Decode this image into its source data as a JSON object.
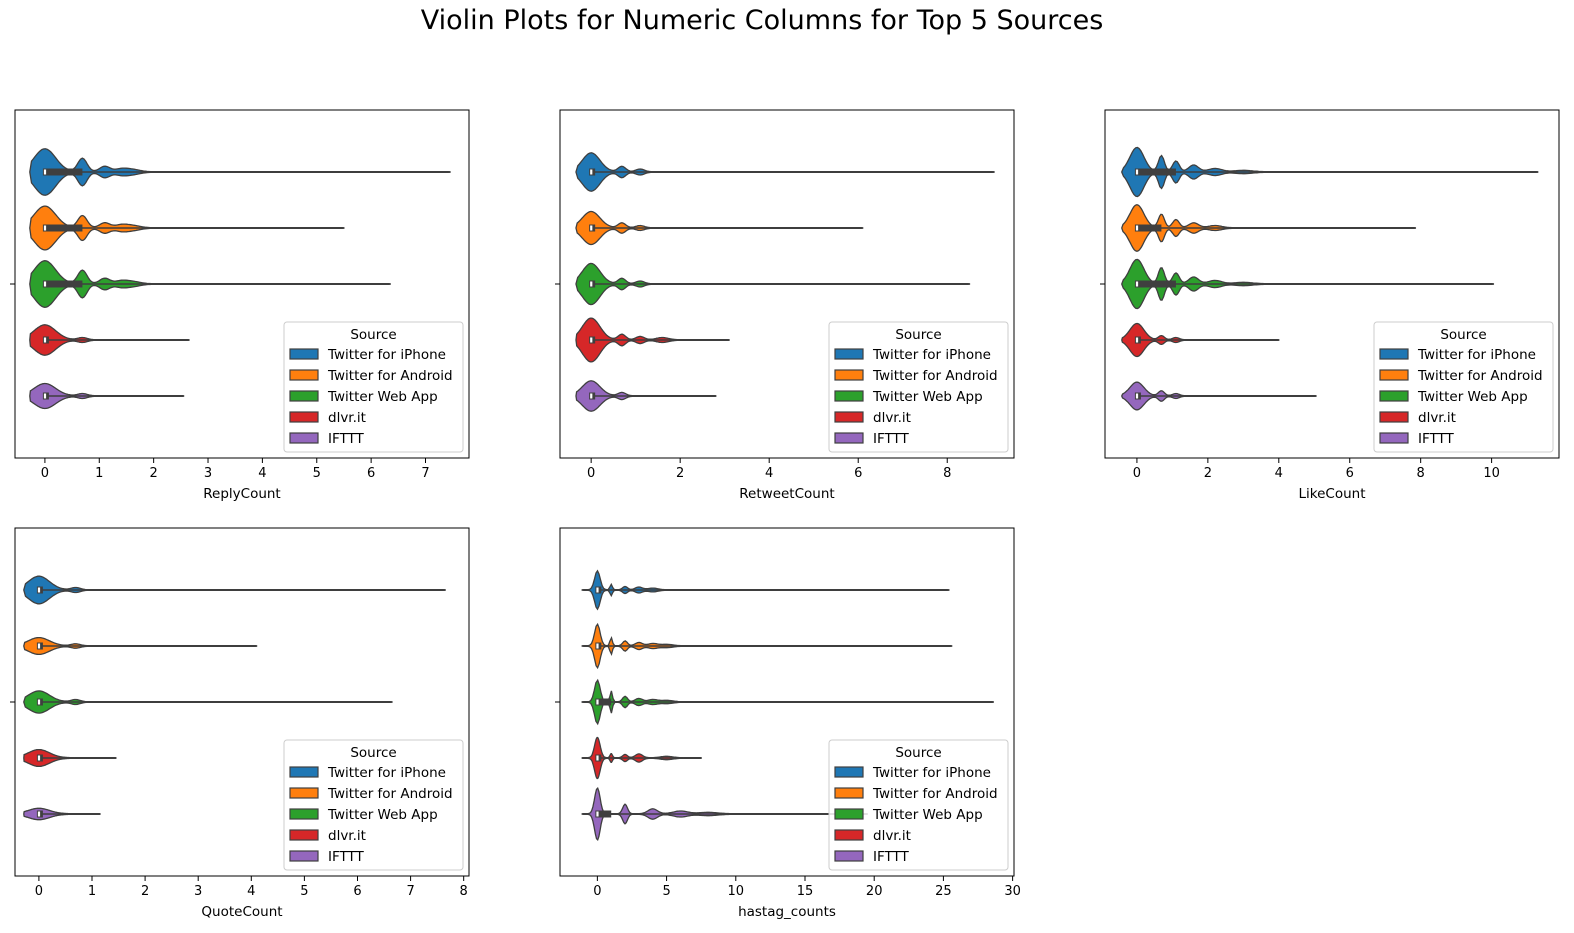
{
  "title": "Violin Plots for Numeric Columns for Top 5 Sources",
  "colors": {
    "Twitter for iPhone": "#1f77b4",
    "Twitter for Android": "#ff7f0e",
    "Twitter Web App": "#2ca02c",
    "dlvr.it": "#d62728",
    "IFTTT": "#9467bd"
  },
  "chart_data": [
    {
      "type": "violin",
      "xlabel": "ReplyCount",
      "xlim": [
        -0.55,
        7.8
      ],
      "xticks": [
        0,
        1,
        2,
        3,
        4,
        5,
        6,
        7
      ],
      "legend_title": "Source",
      "legend_position": "lower-right",
      "series": [
        {
          "name": "Twitter for iPhone",
          "max": 7.45,
          "width": 0.85,
          "iqr": [
            0,
            0.69
          ],
          "bumps": [
            [
              0.69,
              0.5
            ],
            [
              1.1,
              0.2
            ],
            [
              1.4,
              0.1
            ],
            [
              1.61,
              0.08
            ]
          ]
        },
        {
          "name": "Twitter for Android",
          "max": 5.5,
          "width": 0.8,
          "iqr": [
            0,
            0.69
          ],
          "bumps": [
            [
              0.69,
              0.45
            ],
            [
              1.1,
              0.18
            ],
            [
              1.4,
              0.1
            ],
            [
              1.61,
              0.08
            ]
          ]
        },
        {
          "name": "Twitter Web App",
          "max": 6.35,
          "width": 0.85,
          "iqr": [
            0,
            0.69
          ],
          "bumps": [
            [
              0.69,
              0.5
            ],
            [
              1.1,
              0.2
            ],
            [
              1.4,
              0.1
            ],
            [
              1.61,
              0.08
            ]
          ]
        },
        {
          "name": "dlvr.it",
          "max": 2.65,
          "width": 0.55,
          "iqr": [
            0,
            0
          ],
          "bumps": [
            [
              0.69,
              0.08
            ]
          ]
        },
        {
          "name": "IFTTT",
          "max": 2.55,
          "width": 0.45,
          "iqr": [
            0,
            0
          ],
          "bumps": [
            [
              0.69,
              0.08
            ]
          ]
        }
      ]
    },
    {
      "type": "violin",
      "xlabel": "RetweetCount",
      "xlim": [
        -0.7,
        9.5
      ],
      "xticks": [
        0,
        2,
        4,
        6,
        8
      ],
      "legend_title": "Source",
      "legend_position": "lower-right",
      "series": [
        {
          "name": "Twitter for iPhone",
          "max": 9.05,
          "width": 0.7,
          "iqr": [
            0,
            0
          ],
          "bumps": [
            [
              0.69,
              0.2
            ],
            [
              1.1,
              0.1
            ]
          ]
        },
        {
          "name": "Twitter for Android",
          "max": 6.1,
          "width": 0.6,
          "iqr": [
            0,
            0
          ],
          "bumps": [
            [
              0.69,
              0.18
            ],
            [
              1.1,
              0.08
            ]
          ]
        },
        {
          "name": "Twitter Web App",
          "max": 8.5,
          "width": 0.75,
          "iqr": [
            0,
            0
          ],
          "bumps": [
            [
              0.69,
              0.2
            ],
            [
              1.1,
              0.1
            ]
          ]
        },
        {
          "name": "dlvr.it",
          "max": 3.1,
          "width": 0.8,
          "iqr": [
            0,
            0
          ],
          "bumps": [
            [
              0.69,
              0.2
            ],
            [
              1.1,
              0.12
            ],
            [
              1.6,
              0.08
            ]
          ]
        },
        {
          "name": "IFTTT",
          "max": 2.8,
          "width": 0.55,
          "iqr": [
            0,
            0
          ],
          "bumps": [
            [
              0.69,
              0.12
            ]
          ]
        }
      ]
    },
    {
      "type": "violin",
      "xlabel": "LikeCount",
      "xlim": [
        -0.9,
        11.9
      ],
      "xticks": [
        0,
        2,
        4,
        6,
        8,
        10
      ],
      "legend_title": "Source",
      "legend_position": "lower-right",
      "series": [
        {
          "name": "Twitter for iPhone",
          "max": 11.3,
          "width": 0.9,
          "iqr": [
            0,
            1.1
          ],
          "bumps": [
            [
              0.69,
              0.6
            ],
            [
              1.1,
              0.4
            ],
            [
              1.6,
              0.25
            ],
            [
              2.2,
              0.12
            ],
            [
              3.0,
              0.05
            ]
          ]
        },
        {
          "name": "Twitter for Android",
          "max": 7.85,
          "width": 0.85,
          "iqr": [
            0,
            0.69
          ],
          "bumps": [
            [
              0.69,
              0.5
            ],
            [
              1.1,
              0.3
            ],
            [
              1.6,
              0.18
            ],
            [
              2.2,
              0.08
            ]
          ]
        },
        {
          "name": "Twitter Web App",
          "max": 10.05,
          "width": 0.9,
          "iqr": [
            0,
            1.1
          ],
          "bumps": [
            [
              0.69,
              0.6
            ],
            [
              1.1,
              0.4
            ],
            [
              1.6,
              0.25
            ],
            [
              2.2,
              0.12
            ],
            [
              3.0,
              0.05
            ]
          ]
        },
        {
          "name": "dlvr.it",
          "max": 4.0,
          "width": 0.6,
          "iqr": [
            0,
            0
          ],
          "bumps": [
            [
              0.69,
              0.15
            ],
            [
              1.1,
              0.08
            ]
          ]
        },
        {
          "name": "IFTTT",
          "max": 5.05,
          "width": 0.5,
          "iqr": [
            0,
            0
          ],
          "bumps": [
            [
              0.69,
              0.18
            ],
            [
              1.1,
              0.08
            ]
          ]
        }
      ]
    },
    {
      "type": "violin",
      "xlabel": "QuoteCount",
      "xlim": [
        -0.45,
        8.1
      ],
      "xticks": [
        0,
        1,
        2,
        3,
        4,
        5,
        6,
        7,
        8
      ],
      "legend_title": "Source",
      "legend_position": "lower-right",
      "series": [
        {
          "name": "Twitter for iPhone",
          "max": 7.65,
          "width": 0.5,
          "iqr": [
            0,
            0
          ],
          "bumps": [
            [
              0.69,
              0.08
            ]
          ]
        },
        {
          "name": "Twitter for Android",
          "max": 4.1,
          "width": 0.3,
          "iqr": [
            0,
            0
          ],
          "bumps": [
            [
              0.69,
              0.07
            ]
          ]
        },
        {
          "name": "Twitter Web App",
          "max": 6.65,
          "width": 0.4,
          "iqr": [
            0,
            0
          ],
          "bumps": [
            [
              0.69,
              0.08
            ]
          ]
        },
        {
          "name": "dlvr.it",
          "max": 1.45,
          "width": 0.3,
          "iqr": [
            0,
            0
          ],
          "bumps": []
        },
        {
          "name": "IFTTT",
          "max": 1.15,
          "width": 0.2,
          "iqr": [
            0,
            0
          ],
          "bumps": []
        }
      ]
    },
    {
      "type": "violin",
      "xlabel": "hastag_counts",
      "xlim": [
        -2.7,
        30.1
      ],
      "xticks": [
        0,
        5,
        10,
        15,
        20,
        25,
        30
      ],
      "legend_title": "Source",
      "legend_position": "lower-right",
      "series": [
        {
          "name": "Twitter for iPhone",
          "max": 25.4,
          "width": 0.7,
          "iqr": [
            0,
            0
          ],
          "bumps": [
            [
              1,
              0.2
            ],
            [
              2,
              0.12
            ],
            [
              3,
              0.1
            ],
            [
              4,
              0.06
            ]
          ]
        },
        {
          "name": "Twitter for Android",
          "max": 25.6,
          "width": 0.8,
          "iqr": [
            0,
            0
          ],
          "bumps": [
            [
              1,
              0.3
            ],
            [
              2,
              0.18
            ],
            [
              3,
              0.12
            ],
            [
              4,
              0.08
            ],
            [
              5,
              0.05
            ]
          ]
        },
        {
          "name": "Twitter Web App",
          "max": 28.6,
          "width": 0.8,
          "iqr": [
            0,
            1
          ],
          "bumps": [
            [
              1,
              0.4
            ],
            [
              2,
              0.2
            ],
            [
              3,
              0.12
            ],
            [
              4,
              0.08
            ],
            [
              5,
              0.05
            ]
          ]
        },
        {
          "name": "dlvr.it",
          "max": 7.5,
          "width": 0.75,
          "iqr": [
            0,
            0
          ],
          "bumps": [
            [
              1,
              0.15
            ],
            [
              2,
              0.12
            ],
            [
              3,
              0.14
            ],
            [
              5,
              0.05
            ]
          ]
        },
        {
          "name": "IFTTT",
          "max": 19.5,
          "width": 0.95,
          "iqr": [
            0,
            1
          ],
          "bumps": [
            [
              2,
              0.35
            ],
            [
              4,
              0.18
            ],
            [
              6,
              0.1
            ],
            [
              8,
              0.05
            ]
          ]
        }
      ]
    }
  ]
}
